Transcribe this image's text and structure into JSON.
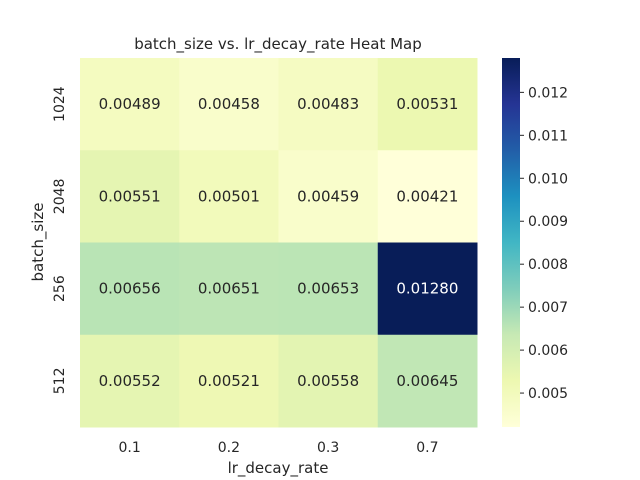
{
  "chart_data": {
    "type": "heatmap",
    "title": "batch_size vs. lr_decay_rate Heat Map",
    "xlabel": "lr_decay_rate",
    "ylabel": "batch_size",
    "x_categories": [
      "0.1",
      "0.2",
      "0.3",
      "0.7"
    ],
    "y_categories": [
      "1024",
      "2048",
      "256",
      "512"
    ],
    "values": [
      [
        0.00489,
        0.00458,
        0.00483,
        0.00531
      ],
      [
        0.00551,
        0.00501,
        0.00459,
        0.00421
      ],
      [
        0.00656,
        0.00651,
        0.00653,
        0.0128
      ],
      [
        0.00552,
        0.00521,
        0.00558,
        0.00645
      ]
    ],
    "cell_labels": [
      [
        "0.00489",
        "0.00458",
        "0.00483",
        "0.00531"
      ],
      [
        "0.00551",
        "0.00501",
        "0.00459",
        "0.00421"
      ],
      [
        "0.00656",
        "0.00651",
        "0.00653",
        "0.01280"
      ],
      [
        "0.00552",
        "0.00521",
        "0.00558",
        "0.00645"
      ]
    ],
    "colormap": "YlGnBu",
    "color_range": [
      0.00421,
      0.0128
    ],
    "colorbar_ticks": [
      0.005,
      0.006,
      0.007,
      0.008,
      0.009,
      0.01,
      0.011,
      0.012
    ],
    "colorbar_tick_labels": [
      "0.005",
      "0.006",
      "0.007",
      "0.008",
      "0.009",
      "0.010",
      "0.011",
      "0.012"
    ],
    "grid": false,
    "legend": "colorbar-right"
  }
}
